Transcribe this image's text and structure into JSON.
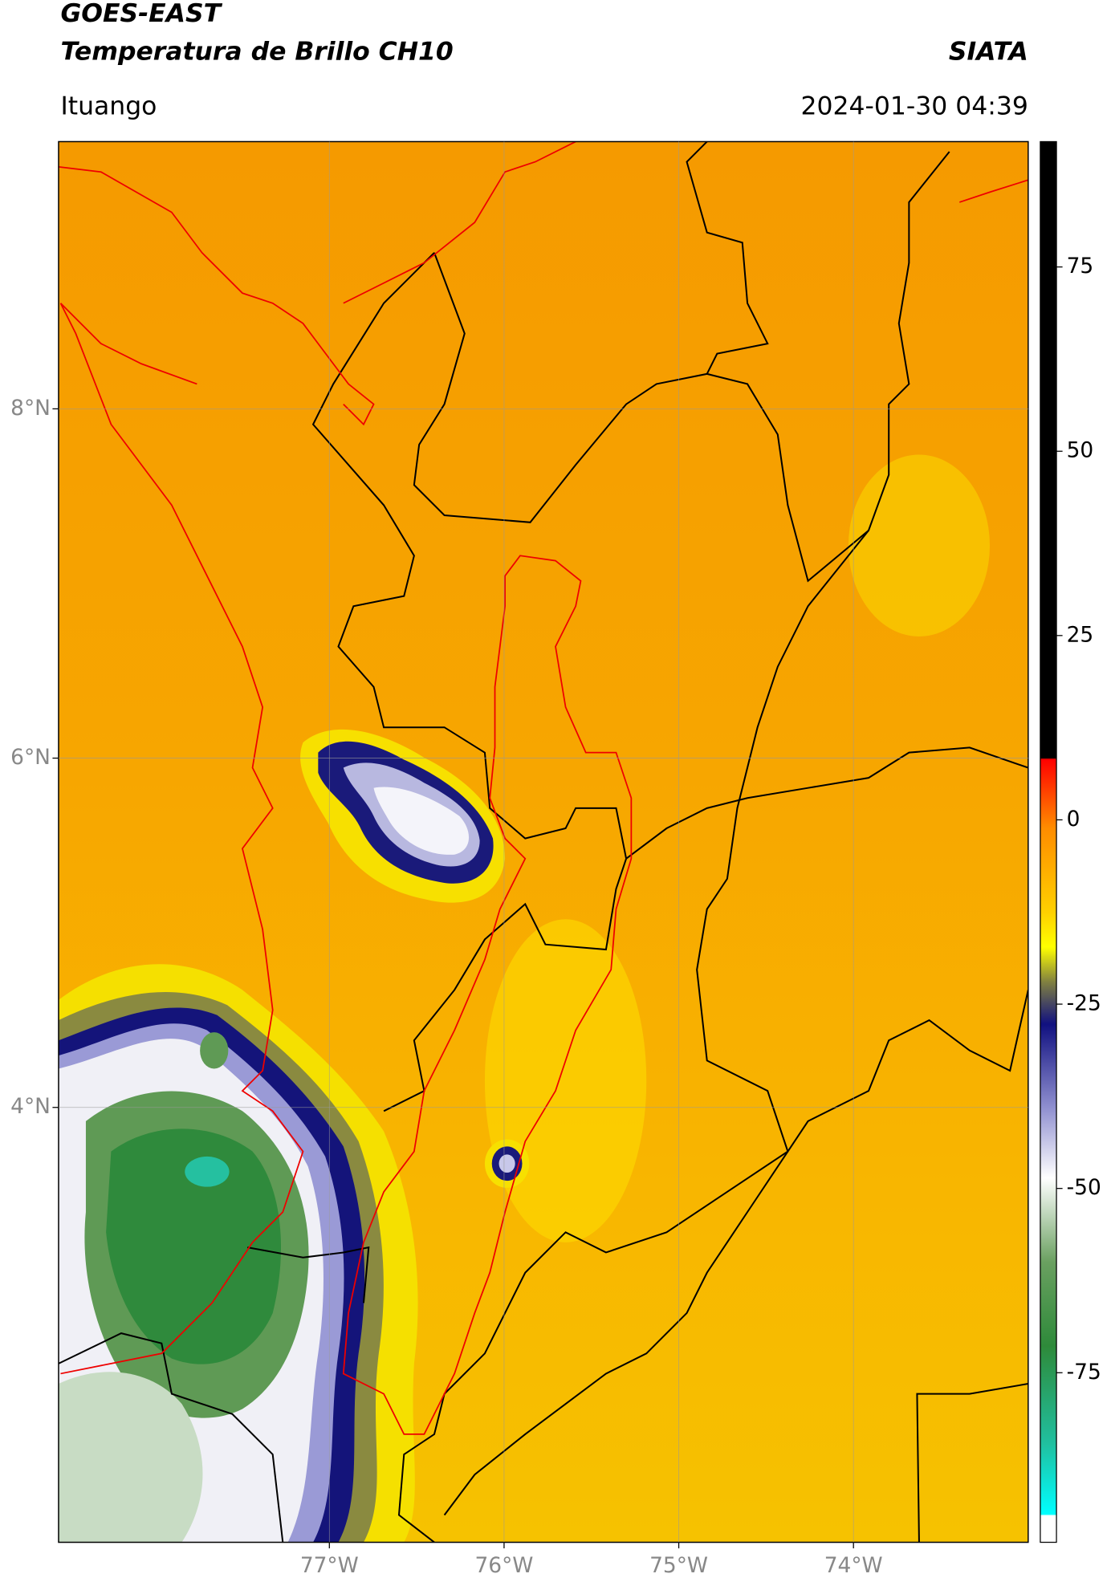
{
  "chart_data": {
    "type": "map",
    "title": "GOES-EAST",
    "subtitle": "Temperatura de Brillo CH10",
    "source": "SIATA",
    "location": "Ituango",
    "datetime": "2024-01-30 04:39",
    "xlim": [
      -78.55,
      -73.0
    ],
    "ylim": [
      1.51,
      9.53
    ],
    "xticks": [
      {
        "value": -77,
        "label": "77°W"
      },
      {
        "value": -76,
        "label": "76°W"
      },
      {
        "value": -75,
        "label": "75°W"
      },
      {
        "value": -74,
        "label": "74°W"
      }
    ],
    "yticks": [
      {
        "value": 4,
        "label": "4°N"
      },
      {
        "value": 6,
        "label": "6°N"
      },
      {
        "value": 8,
        "label": "8°N"
      }
    ],
    "grid": true,
    "colorbar": {
      "lim": [
        -98,
        92
      ],
      "ticks": [
        75,
        50,
        25,
        0,
        -25,
        -50,
        -75
      ]
    }
  }
}
